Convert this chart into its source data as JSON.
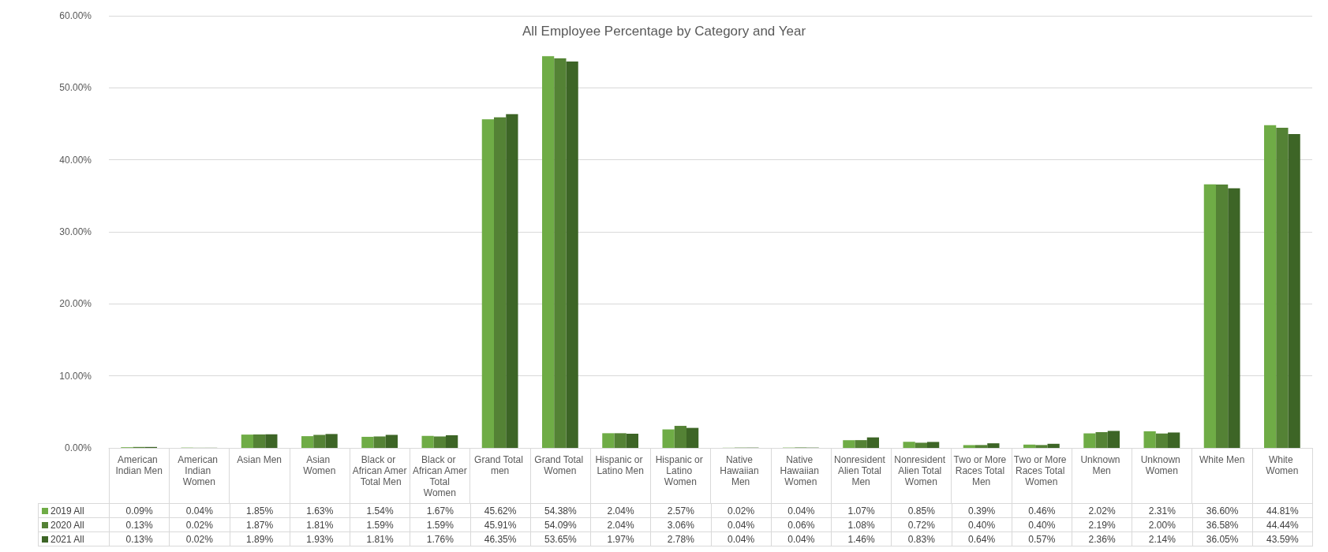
{
  "chart_data": {
    "type": "bar",
    "title": "All Employee Percentage by Category and Year",
    "categories": [
      "American Indian Men",
      "American Indian Women",
      "Asian Men",
      "Asian Women",
      "Black or African Amer Total Men",
      "Black or African Amer Total Women",
      "Grand Total men",
      "Grand Total Women",
      "Hispanic or Latino Men",
      "Hispanic or Latino Women",
      "Native Hawaiian Men",
      "Native Hawaiian Women",
      "Nonresident Alien Total Men",
      "Nonresident Alien Total Women",
      "Two or More Races Total Men",
      "Two or More Races Total Women",
      "Unknown Men",
      "Unknown Women",
      "White Men",
      "White Women"
    ],
    "series": [
      {
        "name": "2019 All",
        "color": "#6fac46",
        "values": [
          0.09,
          0.04,
          1.85,
          1.63,
          1.54,
          1.67,
          45.62,
          54.38,
          2.04,
          2.57,
          0.02,
          0.04,
          1.07,
          0.85,
          0.39,
          0.46,
          2.02,
          2.31,
          36.6,
          44.81
        ],
        "value_labels": [
          "0.09%",
          "0.04%",
          "1.85%",
          "1.63%",
          "1.54%",
          "1.67%",
          "45.62%",
          "54.38%",
          "2.04%",
          "2.57%",
          "0.02%",
          "0.04%",
          "1.07%",
          "0.85%",
          "0.39%",
          "0.46%",
          "2.02%",
          "2.31%",
          "36.60%",
          "44.81%"
        ]
      },
      {
        "name": "2020 All",
        "color": "#548235",
        "values": [
          0.13,
          0.02,
          1.87,
          1.81,
          1.59,
          1.59,
          45.91,
          54.09,
          2.04,
          3.06,
          0.04,
          0.06,
          1.08,
          0.72,
          0.4,
          0.4,
          2.19,
          2.0,
          36.58,
          44.44
        ],
        "value_labels": [
          "0.13%",
          "0.02%",
          "1.87%",
          "1.81%",
          "1.59%",
          "1.59%",
          "45.91%",
          "54.09%",
          "2.04%",
          "3.06%",
          "0.04%",
          "0.06%",
          "1.08%",
          "0.72%",
          "0.40%",
          "0.40%",
          "2.19%",
          "2.00%",
          "36.58%",
          "44.44%"
        ]
      },
      {
        "name": "2021 All",
        "color": "#3d6526",
        "values": [
          0.13,
          0.02,
          1.89,
          1.93,
          1.81,
          1.76,
          46.35,
          53.65,
          1.97,
          2.78,
          0.04,
          0.04,
          1.46,
          0.83,
          0.64,
          0.57,
          2.36,
          2.14,
          36.05,
          43.59
        ],
        "value_labels": [
          "0.13%",
          "0.02%",
          "1.89%",
          "1.93%",
          "1.81%",
          "1.76%",
          "46.35%",
          "53.65%",
          "1.97%",
          "2.78%",
          "0.04%",
          "0.04%",
          "1.46%",
          "0.83%",
          "0.64%",
          "0.57%",
          "2.36%",
          "2.14%",
          "36.05%",
          "43.59%"
        ]
      }
    ],
    "ylim": [
      0,
      60
    ],
    "yticks": [
      {
        "value": 0,
        "label": "0.00%"
      },
      {
        "value": 10,
        "label": "10.00%"
      },
      {
        "value": 20,
        "label": "20.00%"
      },
      {
        "value": 30,
        "label": "30.00%"
      },
      {
        "value": 40,
        "label": "40.00%"
      },
      {
        "value": 50,
        "label": "50.00%"
      },
      {
        "value": 60,
        "label": "60.00%"
      }
    ],
    "grid": "y",
    "legend": "bottom"
  }
}
